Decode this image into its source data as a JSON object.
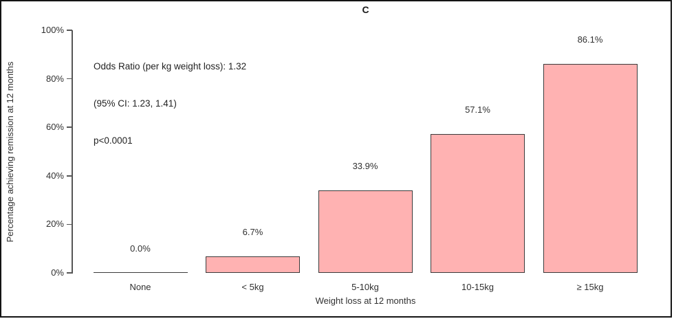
{
  "figure": {
    "panel_label": "C",
    "annotation_lines": [
      "Odds Ratio (per kg weight loss): 1.32",
      "(95% CI: 1.23, 1.41)",
      "p<0.0001"
    ]
  },
  "chart_data": {
    "type": "bar",
    "title": "C",
    "categories": [
      "None",
      "< 5kg",
      "5-10kg",
      "10-15kg",
      "≥ 15kg"
    ],
    "values": [
      0.0,
      6.7,
      33.9,
      57.1,
      86.1
    ],
    "bar_labels": [
      "0.0%",
      "6.7%",
      "33.9%",
      "57.1%",
      "86.1%"
    ],
    "xlabel": "Weight loss at 12 months",
    "ylabel": "Percentage achieving remission at 12 months",
    "ylim": [
      0,
      100
    ],
    "yticks": [
      0,
      20,
      40,
      60,
      80,
      100
    ],
    "ytick_labels": [
      "0%",
      "20%",
      "40%",
      "60%",
      "80%",
      "100%"
    ],
    "grid": false,
    "legend": null,
    "annotation": "Odds Ratio (per kg weight loss): 1.32\n(95% CI: 1.23, 1.41)\np<0.0001",
    "colors": {
      "bar_fill": "#ffb2b2",
      "bar_border": "#3a3a3a",
      "axis": "#555555",
      "text": "#303030"
    }
  }
}
